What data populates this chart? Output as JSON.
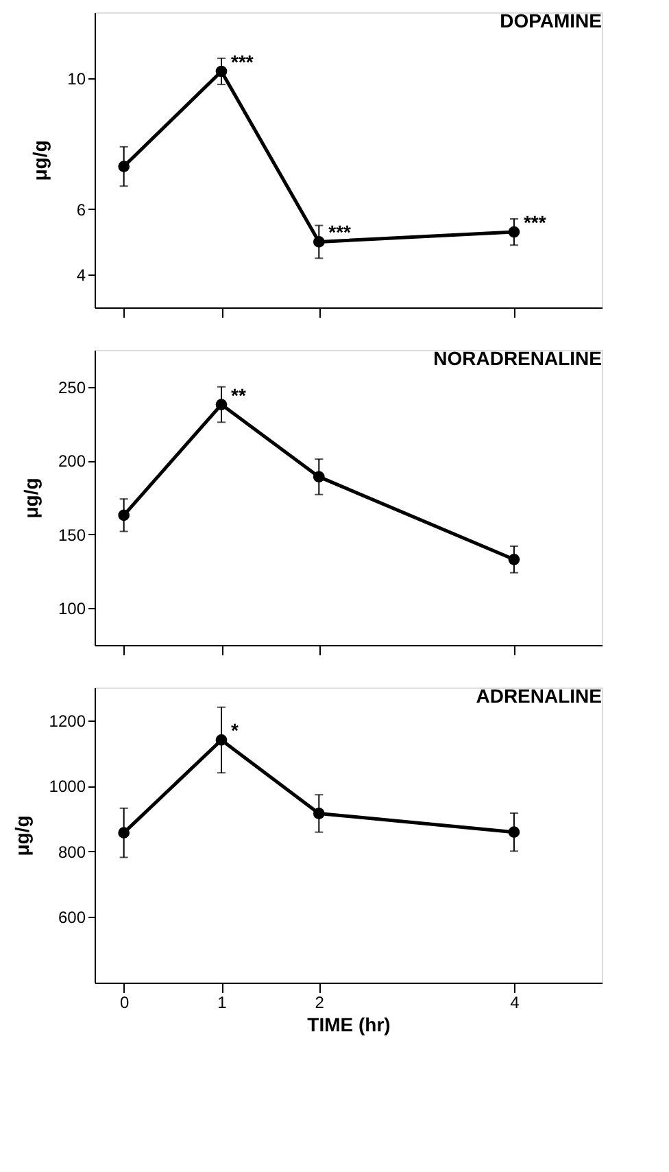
{
  "chart_data": [
    {
      "type": "line",
      "title": "DOPAMINE",
      "ylabel": "μg/g",
      "x": [
        0,
        1,
        2,
        4
      ],
      "xlim": [
        -0.3,
        4.9
      ],
      "xticks": [
        {
          "value": 0,
          "label": null
        },
        {
          "value": 1,
          "label": null
        },
        {
          "value": 2,
          "label": null
        },
        {
          "value": 4,
          "label": null
        }
      ],
      "ylim": [
        3,
        12
      ],
      "yticks": [
        4,
        6,
        10
      ],
      "tick_labels": "y",
      "grid": false,
      "marker": "circle",
      "line_style": "solid",
      "series": [
        {
          "color": "#000000",
          "values": [
            7.3,
            10.2,
            5.0,
            5.3
          ],
          "errors": [
            0.6,
            0.4,
            0.5,
            0.4
          ]
        }
      ],
      "annotations": [
        {
          "text": "***",
          "x": 1,
          "y": 10.2
        },
        {
          "text": "***",
          "x": 2,
          "y": 5.0
        },
        {
          "text": "***",
          "x": 4,
          "y": 5.3
        }
      ]
    },
    {
      "type": "line",
      "title": "NORADRENALINE",
      "ylabel": "μg/g",
      "x": [
        0,
        1,
        2,
        4
      ],
      "xlim": [
        -0.3,
        4.9
      ],
      "xticks": [
        {
          "value": 0,
          "label": null
        },
        {
          "value": 1,
          "label": null
        },
        {
          "value": 2,
          "label": null
        },
        {
          "value": 4,
          "label": null
        }
      ],
      "ylim": [
        75,
        275
      ],
      "yticks": [
        100,
        150,
        200,
        250
      ],
      "tick_labels": "y",
      "grid": false,
      "marker": "circle",
      "line_style": "solid",
      "series": [
        {
          "color": "#000000",
          "values": [
            163,
            238,
            189,
            133
          ],
          "errors": [
            11,
            12,
            12,
            9
          ]
        }
      ],
      "annotations": [
        {
          "text": "**",
          "x": 1,
          "y": 238
        }
      ]
    },
    {
      "type": "line",
      "title": "ADRENALINE",
      "ylabel": "μg/g",
      "xlabel": "TIME (hr)",
      "x": [
        0,
        1,
        2,
        4
      ],
      "xlim": [
        -0.3,
        4.9
      ],
      "xticks": [
        0,
        1,
        2,
        4
      ],
      "ylim": [
        400,
        1300
      ],
      "yticks": [
        600,
        800,
        1000,
        1200
      ],
      "grid": false,
      "marker": "circle",
      "line_style": "solid",
      "series": [
        {
          "color": "#000000",
          "values": [
            857,
            1140,
            916,
            859
          ],
          "errors": [
            75,
            100,
            57,
            58
          ]
        }
      ],
      "annotations": [
        {
          "text": "*",
          "x": 1,
          "y": 1140
        }
      ]
    }
  ]
}
